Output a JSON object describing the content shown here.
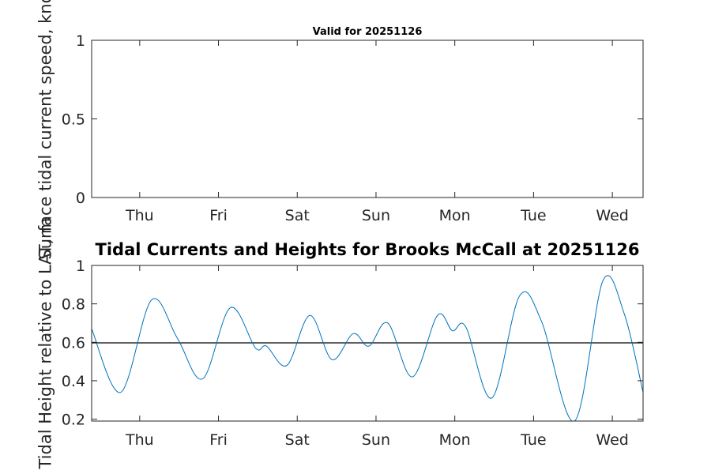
{
  "chart_data": [
    {
      "type": "line",
      "title": "Valid for 20251126",
      "xlabel": "",
      "ylabel": "Surface tidal current speed, knots",
      "xlim": [
        0.39,
        7.39
      ],
      "ylim": [
        0,
        1
      ],
      "yticks": [
        0,
        0.5,
        1
      ],
      "ytick_labels": [
        "0",
        "0.5",
        "1"
      ],
      "xticks": [
        1,
        2,
        3,
        4,
        5,
        6,
        7
      ],
      "xtick_labels": [
        "Thu",
        "Fri",
        "Sat",
        "Sun",
        "Mon",
        "Tue",
        "Wed"
      ],
      "grid": false,
      "series": []
    },
    {
      "type": "line",
      "title": "Tidal Currents and Heights for Brooks McCall at 20251126",
      "xlabel": "",
      "ylabel": "Tidal Height relative to LAT, m",
      "xlim": [
        0.39,
        7.39
      ],
      "ylim": [
        0.19,
        1
      ],
      "yticks": [
        0.2,
        0.4,
        0.6,
        0.8,
        1
      ],
      "ytick_labels": [
        "0.2",
        "0.4",
        "0.6",
        "0.8",
        "1"
      ],
      "xticks": [
        1,
        2,
        3,
        4,
        5,
        6,
        7
      ],
      "xtick_labels": [
        "Thu",
        "Fri",
        "Sat",
        "Sun",
        "Mon",
        "Tue",
        "Wed"
      ],
      "grid": false,
      "reference_line": {
        "y": 0.597,
        "color": "#000000"
      },
      "series": [
        {
          "name": "tidal height",
          "color": "#0072BD",
          "points": [
            [
              0.39,
              0.67
            ],
            [
              0.76,
              0.34
            ],
            [
              1.15,
              0.82
            ],
            [
              1.48,
              0.62
            ],
            [
              1.8,
              0.41
            ],
            [
              2.15,
              0.78
            ],
            [
              2.47,
              0.57
            ],
            [
              2.61,
              0.58
            ],
            [
              2.87,
              0.48
            ],
            [
              3.16,
              0.74
            ],
            [
              3.44,
              0.51
            ],
            [
              3.71,
              0.645
            ],
            [
              3.91,
              0.58
            ],
            [
              4.15,
              0.7
            ],
            [
              4.46,
              0.42
            ],
            [
              4.78,
              0.74
            ],
            [
              4.97,
              0.66
            ],
            [
              5.14,
              0.68
            ],
            [
              5.47,
              0.31
            ],
            [
              5.82,
              0.84
            ],
            [
              6.1,
              0.71
            ],
            [
              6.52,
              0.19
            ],
            [
              6.88,
              0.92
            ],
            [
              7.15,
              0.75
            ],
            [
              7.39,
              0.34
            ]
          ]
        }
      ]
    }
  ]
}
